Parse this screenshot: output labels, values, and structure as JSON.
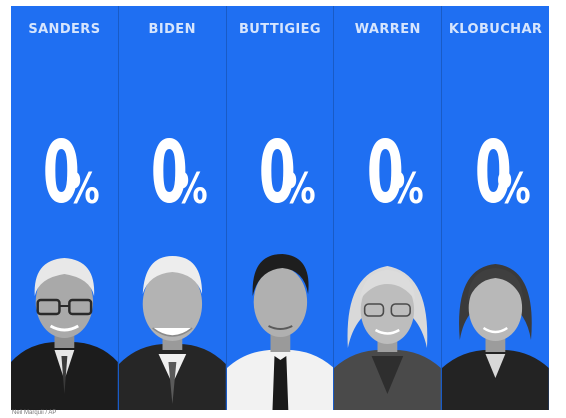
{
  "theme": {
    "panel_color": "#1f6ff2",
    "label_color": "#ffffff"
  },
  "candidates": [
    {
      "name": "SANDERS",
      "percent_value": "0",
      "percent_sign": "%"
    },
    {
      "name": "BIDEN",
      "percent_value": "0",
      "percent_sign": "%"
    },
    {
      "name": "BUTTIGIEG",
      "percent_value": "0",
      "percent_sign": "%"
    },
    {
      "name": "WARREN",
      "percent_value": "0",
      "percent_sign": "%"
    },
    {
      "name": "KLOBUCHAR",
      "percent_value": "0",
      "percent_sign": "%"
    }
  ],
  "footer": {
    "text": "Neil Marquii / AP"
  }
}
